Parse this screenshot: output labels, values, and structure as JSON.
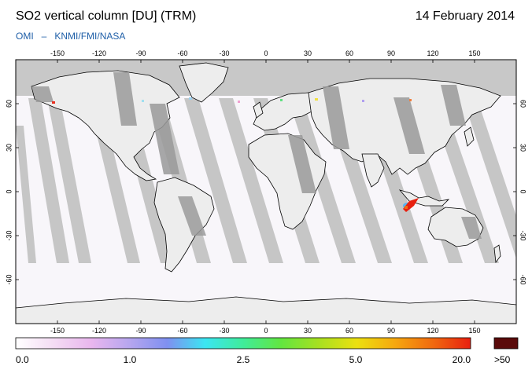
{
  "header": {
    "title": "SO2 vertical column [DU] (TRM)",
    "date": "14 February 2014",
    "credit_left": "OMI",
    "credit_sep": "–",
    "credit_right": "KNMI/FMI/NASA"
  },
  "map": {
    "lon_ticks": [
      "-150",
      "-120",
      "-90",
      "-60",
      "-30",
      "0",
      "30",
      "60",
      "90",
      "120",
      "150"
    ],
    "lat_ticks": [
      "60",
      "30",
      "0",
      "-30",
      "-60"
    ],
    "lon_range": [
      -180,
      180
    ],
    "lat_range": [
      -90,
      90
    ],
    "colors": {
      "polar_night": "#c8c8c8",
      "no_data_swath": "#c4c4c4",
      "land_shade": "#9a9a9a",
      "background": "#f8f6fa",
      "coastline": "#000000"
    },
    "hotspot": {
      "label": "",
      "lon": 110,
      "lat": -8
    }
  },
  "colorbar": {
    "labels": [
      "0.0",
      "1.0",
      "2.5",
      "5.0",
      "20.0",
      ">50"
    ],
    "overflow_color": "#5a0a0a",
    "stops": [
      "#ffffff",
      "#f4dcf4",
      "#e9b6ee",
      "#b6a6ee",
      "#7f90f0",
      "#3be6f2",
      "#40ec9a",
      "#62e640",
      "#a8e020",
      "#ece010",
      "#f6a810",
      "#f06a10",
      "#e82010"
    ]
  }
}
